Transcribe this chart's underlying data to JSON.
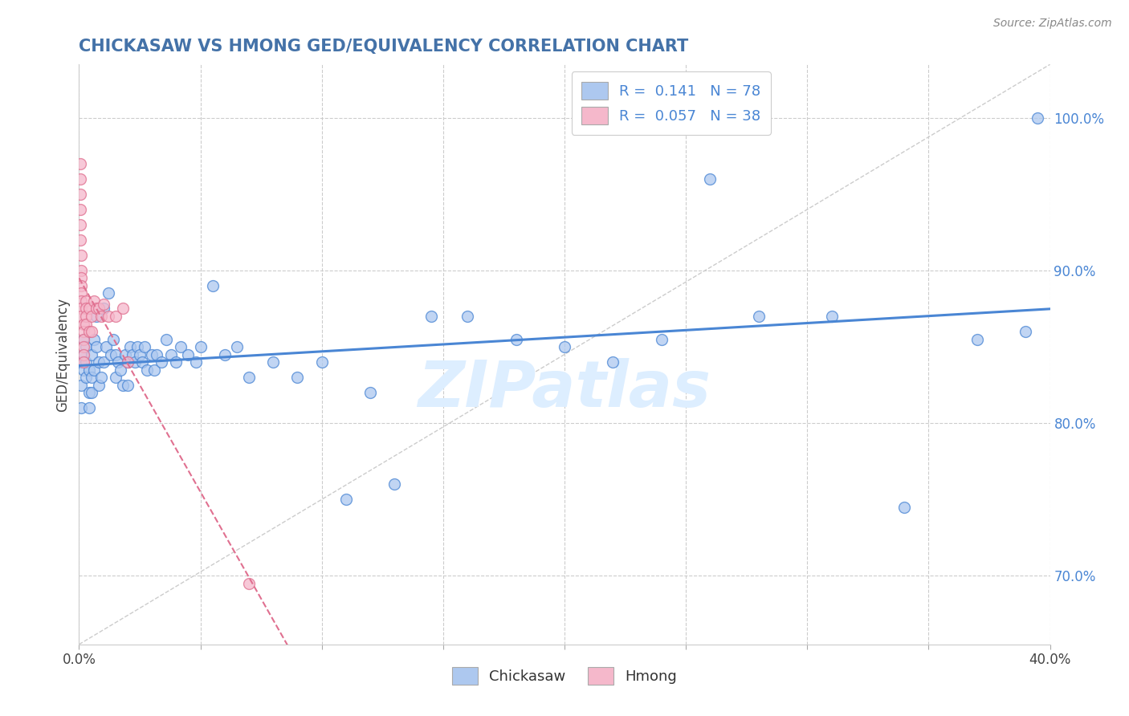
{
  "title": "CHICKASAW VS HMONG GED/EQUIVALENCY CORRELATION CHART",
  "source": "Source: ZipAtlas.com",
  "ylabel": "GED/Equivalency",
  "xlim": [
    0.0,
    0.4
  ],
  "ylim": [
    0.655,
    1.035
  ],
  "xticks": [
    0.0,
    0.05,
    0.1,
    0.15,
    0.2,
    0.25,
    0.3,
    0.35,
    0.4
  ],
  "xtick_labels": [
    "0.0%",
    "",
    "",
    "",
    "",
    "",
    "",
    "",
    "40.0%"
  ],
  "yticks": [
    0.7,
    0.8,
    0.9,
    1.0
  ],
  "ytick_labels": [
    "70.0%",
    "80.0%",
    "90.0%",
    "100.0%"
  ],
  "chickasaw_color": "#adc8ef",
  "hmong_color": "#f5b8cb",
  "chickasaw_R": 0.141,
  "chickasaw_N": 78,
  "hmong_R": 0.057,
  "hmong_N": 38,
  "chickasaw_line_color": "#4a86d4",
  "hmong_line_color": "#e07090",
  "diag_color": "#cccccc",
  "watermark": "ZIPatlas",
  "background_color": "#ffffff",
  "grid_color": "#cccccc",
  "title_color": "#4472a8",
  "source_color": "#888888",
  "chickasaw_x": [
    0.001,
    0.001,
    0.001,
    0.002,
    0.002,
    0.002,
    0.003,
    0.003,
    0.003,
    0.004,
    0.004,
    0.004,
    0.005,
    0.005,
    0.005,
    0.006,
    0.006,
    0.007,
    0.007,
    0.008,
    0.008,
    0.009,
    0.01,
    0.01,
    0.011,
    0.012,
    0.013,
    0.014,
    0.015,
    0.015,
    0.016,
    0.017,
    0.018,
    0.019,
    0.02,
    0.02,
    0.021,
    0.022,
    0.023,
    0.024,
    0.025,
    0.026,
    0.027,
    0.028,
    0.03,
    0.031,
    0.032,
    0.034,
    0.036,
    0.038,
    0.04,
    0.042,
    0.045,
    0.048,
    0.05,
    0.055,
    0.06,
    0.065,
    0.07,
    0.08,
    0.09,
    0.1,
    0.11,
    0.12,
    0.13,
    0.145,
    0.16,
    0.18,
    0.2,
    0.22,
    0.24,
    0.26,
    0.28,
    0.31,
    0.34,
    0.37,
    0.39,
    0.395
  ],
  "chickasaw_y": [
    0.84,
    0.825,
    0.81,
    0.845,
    0.835,
    0.855,
    0.85,
    0.84,
    0.83,
    0.82,
    0.835,
    0.81,
    0.83,
    0.845,
    0.82,
    0.855,
    0.835,
    0.85,
    0.87,
    0.84,
    0.825,
    0.83,
    0.875,
    0.84,
    0.85,
    0.885,
    0.845,
    0.855,
    0.83,
    0.845,
    0.84,
    0.835,
    0.825,
    0.845,
    0.84,
    0.825,
    0.85,
    0.845,
    0.84,
    0.85,
    0.845,
    0.84,
    0.85,
    0.835,
    0.845,
    0.835,
    0.845,
    0.84,
    0.855,
    0.845,
    0.84,
    0.85,
    0.845,
    0.84,
    0.85,
    0.89,
    0.845,
    0.85,
    0.83,
    0.84,
    0.83,
    0.84,
    0.75,
    0.82,
    0.76,
    0.87,
    0.87,
    0.855,
    0.85,
    0.84,
    0.855,
    0.96,
    0.87,
    0.87,
    0.745,
    0.855,
    0.86,
    1.0
  ],
  "hmong_x": [
    0.0005,
    0.0005,
    0.0005,
    0.0005,
    0.0005,
    0.0005,
    0.001,
    0.001,
    0.001,
    0.001,
    0.001,
    0.001,
    0.001,
    0.001,
    0.002,
    0.002,
    0.002,
    0.002,
    0.002,
    0.002,
    0.003,
    0.003,
    0.003,
    0.003,
    0.004,
    0.004,
    0.005,
    0.005,
    0.006,
    0.007,
    0.008,
    0.009,
    0.01,
    0.012,
    0.015,
    0.018,
    0.02,
    0.07
  ],
  "hmong_y": [
    0.97,
    0.96,
    0.95,
    0.94,
    0.93,
    0.92,
    0.91,
    0.9,
    0.895,
    0.89,
    0.885,
    0.88,
    0.875,
    0.87,
    0.865,
    0.86,
    0.855,
    0.85,
    0.845,
    0.84,
    0.88,
    0.875,
    0.87,
    0.865,
    0.875,
    0.86,
    0.87,
    0.86,
    0.88,
    0.875,
    0.875,
    0.87,
    0.878,
    0.87,
    0.87,
    0.875,
    0.84,
    0.695
  ]
}
